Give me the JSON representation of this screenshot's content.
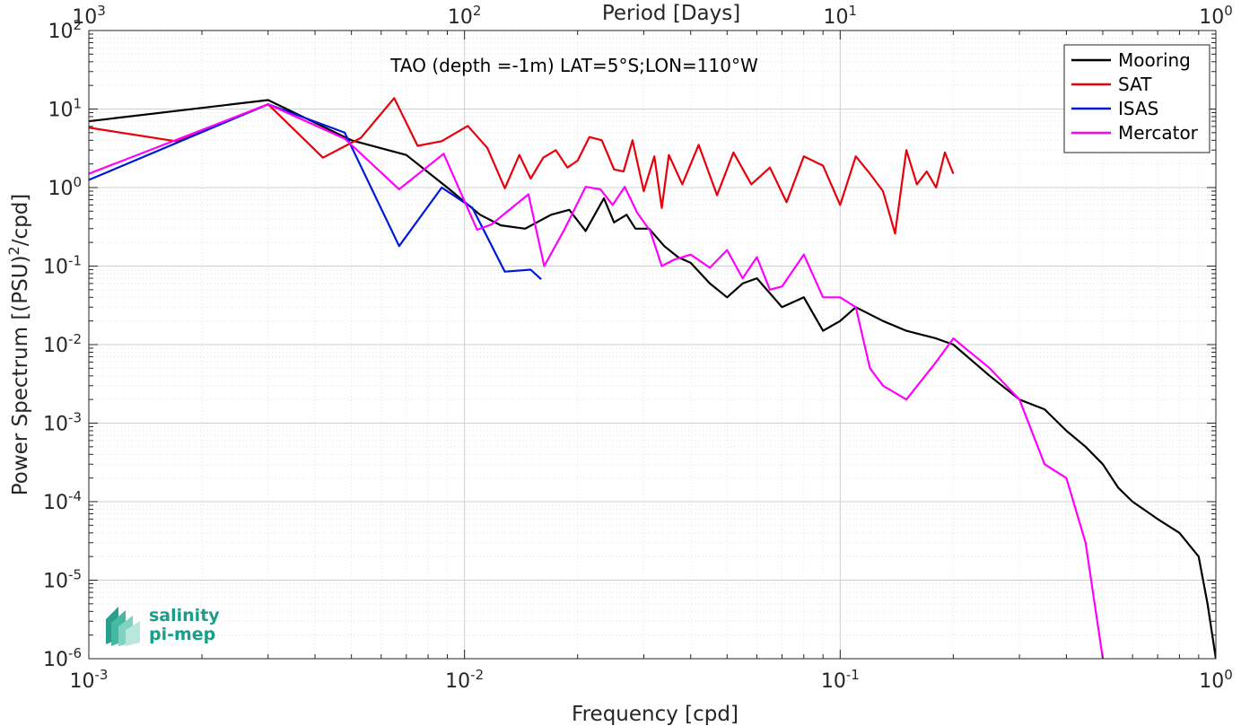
{
  "chart_data": {
    "type": "line",
    "title": "TAO (depth =-1m) LAT=5°S;LON=110°W",
    "xlabel": "Frequency [cpd]",
    "ylabel": "Power Spectrum [(PSU)²/cpd]",
    "ylabel_parts": {
      "main": "Power Spectrum [(PSU)",
      "sup": "2",
      "tail": "/cpd]"
    },
    "x2label": "Period [Days]",
    "xscale": "log",
    "yscale": "log",
    "xlim": [
      0.001,
      1
    ],
    "ylim": [
      1e-06,
      100
    ],
    "grid": true,
    "legend_position": "top-right",
    "x_ticks": [
      {
        "value": 0.001,
        "base": "10",
        "exp": "-3"
      },
      {
        "value": 0.01,
        "base": "10",
        "exp": "-2"
      },
      {
        "value": 0.1,
        "base": "10",
        "exp": "-1"
      },
      {
        "value": 1,
        "base": "10",
        "exp": "0"
      }
    ],
    "x2_ticks": [
      {
        "value": 1000,
        "base": "10",
        "exp": "3"
      },
      {
        "value": 100,
        "base": "10",
        "exp": "2"
      },
      {
        "value": 10,
        "base": "10",
        "exp": "1"
      },
      {
        "value": 1,
        "base": "10",
        "exp": "0"
      }
    ],
    "y_ticks": [
      {
        "value": 100,
        "base": "10",
        "exp": "2"
      },
      {
        "value": 10,
        "base": "10",
        "exp": "1"
      },
      {
        "value": 1,
        "base": "10",
        "exp": "0"
      },
      {
        "value": 0.1,
        "base": "10",
        "exp": "-1"
      },
      {
        "value": 0.01,
        "base": "10",
        "exp": "-2"
      },
      {
        "value": 0.001,
        "base": "10",
        "exp": "-3"
      },
      {
        "value": 0.0001,
        "base": "10",
        "exp": "-4"
      },
      {
        "value": 1e-05,
        "base": "10",
        "exp": "-5"
      },
      {
        "value": 1e-06,
        "base": "10",
        "exp": "-6"
      }
    ],
    "series": [
      {
        "name": "Mooring",
        "color": "#000000",
        "x": [
          0.001,
          0.003,
          0.005,
          0.007,
          0.009,
          0.011,
          0.0125,
          0.0145,
          0.017,
          0.019,
          0.021,
          0.0235,
          0.025,
          0.027,
          0.0285,
          0.031,
          0.034,
          0.037,
          0.04,
          0.045,
          0.05,
          0.055,
          0.06,
          0.07,
          0.08,
          0.09,
          0.1,
          0.11,
          0.13,
          0.15,
          0.18,
          0.2,
          0.25,
          0.3,
          0.35,
          0.4,
          0.45,
          0.5,
          0.55,
          0.6,
          0.7,
          0.8,
          0.9,
          0.95,
          1.0
        ],
        "y": [
          7.0,
          13.0,
          4.0,
          2.6,
          1.0,
          0.45,
          0.33,
          0.3,
          0.45,
          0.52,
          0.28,
          0.73,
          0.36,
          0.45,
          0.3,
          0.3,
          0.18,
          0.13,
          0.11,
          0.06,
          0.04,
          0.06,
          0.07,
          0.03,
          0.04,
          0.015,
          0.02,
          0.03,
          0.02,
          0.015,
          0.012,
          0.01,
          0.004,
          0.002,
          0.0015,
          0.0008,
          0.0005,
          0.0003,
          0.00015,
          0.0001,
          6e-05,
          4e-05,
          2e-05,
          5e-06,
          1e-06
        ]
      },
      {
        "name": "SAT",
        "color": "#e8000b",
        "x": [
          0.001,
          0.0017,
          0.003,
          0.0042,
          0.0053,
          0.0065,
          0.0075,
          0.0087,
          0.0102,
          0.0115,
          0.0128,
          0.014,
          0.015,
          0.0162,
          0.0175,
          0.0188,
          0.02,
          0.0215,
          0.0232,
          0.025,
          0.0265,
          0.028,
          0.03,
          0.032,
          0.0335,
          0.035,
          0.038,
          0.042,
          0.047,
          0.052,
          0.058,
          0.065,
          0.072,
          0.08,
          0.09,
          0.1,
          0.11,
          0.12,
          0.13,
          0.14,
          0.15,
          0.16,
          0.17,
          0.18,
          0.19,
          0.2
        ],
        "y": [
          5.8,
          3.9,
          11.5,
          2.4,
          4.3,
          13.8,
          3.4,
          3.9,
          6.1,
          3.2,
          0.98,
          2.6,
          1.3,
          2.4,
          3.0,
          1.8,
          2.2,
          4.4,
          4.0,
          1.7,
          1.6,
          4.0,
          0.9,
          2.5,
          0.55,
          2.6,
          1.1,
          3.5,
          0.8,
          2.8,
          1.1,
          1.8,
          0.65,
          2.5,
          1.9,
          0.6,
          2.5,
          1.5,
          0.9,
          0.26,
          3.0,
          1.1,
          1.6,
          1.0,
          2.8,
          1.5
        ]
      },
      {
        "name": "ISAS",
        "color": "#0018d8",
        "x": [
          0.001,
          0.003,
          0.0048,
          0.0067,
          0.0087,
          0.0105,
          0.0128,
          0.015,
          0.016
        ],
        "y": [
          1.25,
          11.5,
          5.0,
          0.18,
          1.0,
          0.55,
          0.085,
          0.09,
          0.068
        ]
      },
      {
        "name": "Mercator",
        "color": "#ff00ff",
        "x": [
          0.001,
          0.003,
          0.0048,
          0.0067,
          0.0088,
          0.0108,
          0.0118,
          0.0148,
          0.0163,
          0.0185,
          0.021,
          0.023,
          0.0248,
          0.0267,
          0.0288,
          0.0312,
          0.0335,
          0.036,
          0.04,
          0.045,
          0.05,
          0.055,
          0.06,
          0.065,
          0.07,
          0.08,
          0.09,
          0.1,
          0.11,
          0.12,
          0.13,
          0.15,
          0.18,
          0.2,
          0.25,
          0.3,
          0.35,
          0.4,
          0.45,
          0.5
        ],
        "y": [
          1.5,
          11.5,
          4.2,
          0.95,
          2.7,
          0.29,
          0.34,
          0.82,
          0.1,
          0.3,
          1.02,
          0.95,
          0.6,
          1.02,
          0.48,
          0.28,
          0.1,
          0.12,
          0.14,
          0.095,
          0.16,
          0.07,
          0.13,
          0.05,
          0.055,
          0.14,
          0.04,
          0.04,
          0.03,
          0.005,
          0.003,
          0.002,
          0.006,
          0.012,
          0.005,
          0.002,
          0.0003,
          0.0002,
          3e-05,
          1e-06
        ]
      }
    ]
  },
  "logo": {
    "line1": "salinity",
    "line2": "pi-mep"
  }
}
